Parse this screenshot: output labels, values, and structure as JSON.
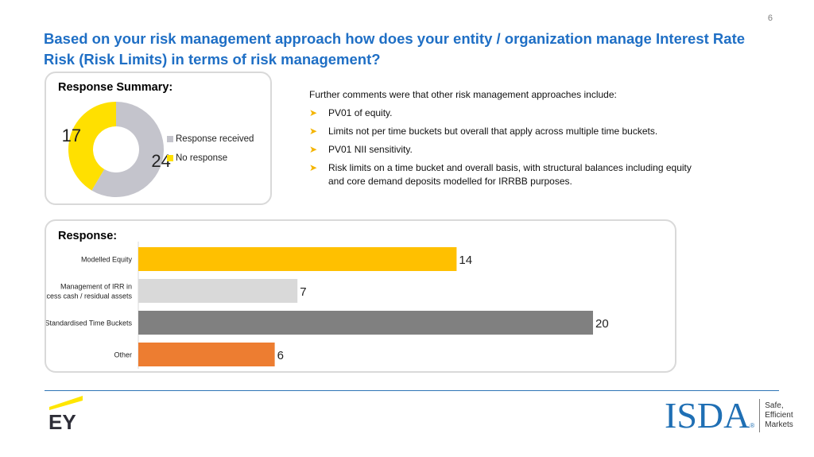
{
  "page_number": "6",
  "title": "Based on your risk management approach how does your entity / organization manage Interest Rate Risk (Risk Limits) in terms of risk management?",
  "summary": {
    "heading": "Response Summary:",
    "legend": [
      {
        "label": "Response received",
        "color": "#c4c4cc"
      },
      {
        "label": "No response",
        "color": "#ffe000"
      }
    ]
  },
  "response": {
    "heading": "Response:"
  },
  "comments": {
    "intro": "Further comments were that other risk management approaches include:",
    "bullet_icon": "arrow-bullet-icon",
    "items": [
      "PV01 of equity.",
      "Limits not per time buckets but overall that apply across multiple time buckets.",
      "PV01 NII sensitivity.",
      "Risk limits on a time bucket and overall basis, with structural balances including equity and core demand deposits modelled for IRRBB purposes."
    ]
  },
  "logos": {
    "ey": "EY",
    "isda": "ISDA",
    "isda_tagline": [
      "Safe,",
      "Efficient",
      "Markets"
    ]
  },
  "chart_data": [
    {
      "type": "pie",
      "donut": true,
      "categories": [
        "Response received",
        "No response"
      ],
      "values": [
        24,
        17
      ],
      "colors": [
        "#c4c4cc",
        "#ffe000"
      ],
      "data_labels": [
        "24",
        "17"
      ],
      "legend": "right"
    },
    {
      "type": "bar",
      "orientation": "horizontal",
      "categories": [
        "Modelled Equity",
        "Management of IRR in excess cash / residual assets",
        "Standardised Time Buckets",
        "Other"
      ],
      "category_label_lines": [
        [
          "Modelled Equity"
        ],
        [
          "Management of IRR in",
          "excess cash / residual assets"
        ],
        [
          "Standardised Time Buckets"
        ],
        [
          "Other"
        ]
      ],
      "values": [
        14,
        7,
        20,
        6
      ],
      "colors": [
        "#ffc000",
        "#d9d9d9",
        "#808080",
        "#ed7d31"
      ],
      "data_labels": [
        "14",
        "7",
        "20",
        "6"
      ],
      "xlim": [
        0,
        20
      ],
      "grid": false,
      "legend": "none"
    }
  ]
}
